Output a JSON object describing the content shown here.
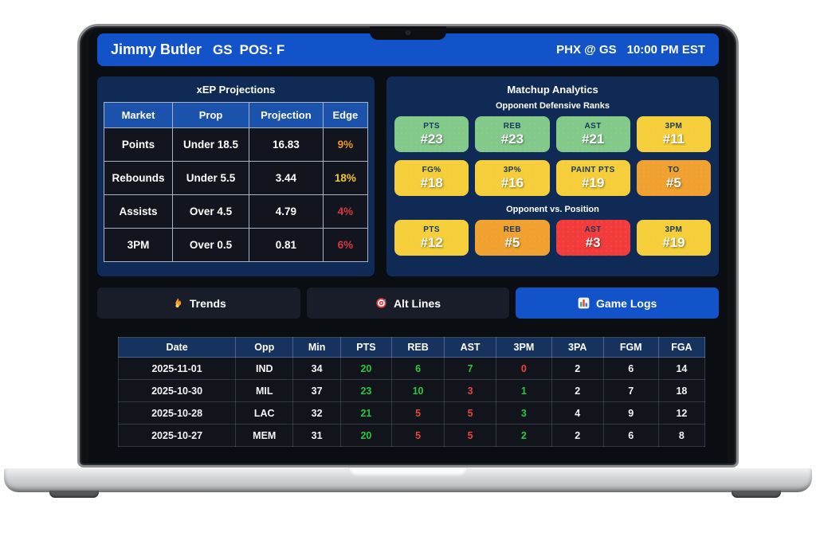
{
  "header": {
    "player": "Jimmy Butler",
    "team": "GS",
    "position": "POS: F",
    "matchup": "PHX @ GS",
    "time": "10:00 PM EST"
  },
  "projections": {
    "title": "xEP Projections",
    "columns": [
      "Market",
      "Prop",
      "Projection",
      "Edge"
    ],
    "rows": [
      {
        "market": "Points",
        "prop": "Under 18.5",
        "projection": "16.83",
        "edge": "9%",
        "edge_color": "edge_orange"
      },
      {
        "market": "Rebounds",
        "prop": "Under 5.5",
        "projection": "3.44",
        "edge": "18%",
        "edge_color": "edge_gold"
      },
      {
        "market": "Assists",
        "prop": "Over 4.5",
        "projection": "4.79",
        "edge": "4%",
        "edge_color": "edge_red"
      },
      {
        "market": "3PM",
        "prop": "Over 0.5",
        "projection": "0.81",
        "edge": "6%",
        "edge_color": "edge_red"
      }
    ]
  },
  "matchup": {
    "title": "Matchup Analytics",
    "sections": [
      {
        "label": "Opponent Defensive Ranks",
        "cards": [
          {
            "stat": "PTS",
            "rank": "#23",
            "color": "card_green"
          },
          {
            "stat": "REB",
            "rank": "#23",
            "color": "card_green"
          },
          {
            "stat": "AST",
            "rank": "#21",
            "color": "card_green"
          },
          {
            "stat": "3PM",
            "rank": "#11",
            "color": "card_yellow"
          },
          {
            "stat": "FG%",
            "rank": "#18",
            "color": "card_yellow"
          },
          {
            "stat": "3P%",
            "rank": "#16",
            "color": "card_yellow"
          },
          {
            "stat": "PAINT PTS",
            "rank": "#19",
            "color": "card_yellow"
          },
          {
            "stat": "TO",
            "rank": "#5",
            "color": "card_orange"
          }
        ]
      },
      {
        "label": "Opponent vs. Position",
        "cards": [
          {
            "stat": "PTS",
            "rank": "#12",
            "color": "card_yellow"
          },
          {
            "stat": "REB",
            "rank": "#5",
            "color": "card_orange"
          },
          {
            "stat": "AST",
            "rank": "#3",
            "color": "card_red"
          },
          {
            "stat": "3PM",
            "rank": "#19",
            "color": "card_yellow"
          }
        ]
      }
    ]
  },
  "tabs": [
    {
      "label": "Trends",
      "icon": "flame-icon",
      "active": false
    },
    {
      "label": "Alt Lines",
      "icon": "target-icon",
      "active": false
    },
    {
      "label": "Game Logs",
      "icon": "bar-chart-icon",
      "active": true
    }
  ],
  "game_logs": {
    "columns": [
      "Date",
      "Opp",
      "Min",
      "PTS",
      "REB",
      "AST",
      "3PM",
      "3PA",
      "FGM",
      "FGA"
    ],
    "rows": [
      {
        "cells": [
          "2025-11-01",
          "IND",
          "34",
          "20",
          "6",
          "7",
          "0",
          "2",
          "6",
          "14"
        ],
        "colors": [
          "stat_white",
          "stat_white",
          "stat_white",
          "stat_green",
          "stat_green",
          "stat_green",
          "stat_red",
          "stat_white",
          "stat_white",
          "stat_white"
        ]
      },
      {
        "cells": [
          "2025-10-30",
          "MIL",
          "37",
          "23",
          "10",
          "3",
          "1",
          "2",
          "7",
          "18"
        ],
        "colors": [
          "stat_white",
          "stat_white",
          "stat_white",
          "stat_green",
          "stat_green",
          "stat_red",
          "stat_green",
          "stat_white",
          "stat_white",
          "stat_white"
        ]
      },
      {
        "cells": [
          "2025-10-28",
          "LAC",
          "32",
          "21",
          "5",
          "5",
          "3",
          "4",
          "9",
          "12"
        ],
        "colors": [
          "stat_white",
          "stat_white",
          "stat_white",
          "stat_green",
          "stat_red",
          "stat_red",
          "stat_green",
          "stat_white",
          "stat_white",
          "stat_white"
        ]
      },
      {
        "cells": [
          "2025-10-27",
          "MEM",
          "31",
          "20",
          "5",
          "5",
          "2",
          "2",
          "6",
          "8"
        ],
        "colors": [
          "stat_white",
          "stat_white",
          "stat_white",
          "stat_green",
          "stat_red",
          "stat_red",
          "stat_green",
          "stat_white",
          "stat_white",
          "stat_white"
        ]
      }
    ]
  },
  "colors": {
    "accent_blue": "#1253c9",
    "panel_navy": "#0e2a55",
    "card_green": "#82c98a",
    "card_yellow": "#f5ce39",
    "card_orange": "#f0a12f",
    "card_red": "#f23b3b",
    "edge_orange": "#e8962e",
    "edge_gold": "#f0c929",
    "edge_red": "#d63843",
    "stat_green": "#27c93f",
    "stat_red": "#e8453c",
    "stat_white": "#f5f6f8"
  }
}
